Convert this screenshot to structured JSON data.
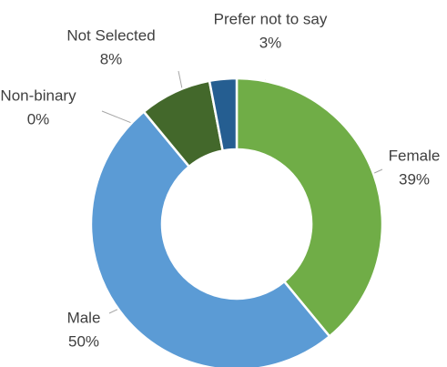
{
  "chart_data": {
    "type": "donut",
    "categories": [
      "Female",
      "Male",
      "Non-binary",
      "Not Selected",
      "Prefer not to say"
    ],
    "values": [
      39,
      50,
      0,
      8,
      3
    ],
    "value_labels": [
      "39%",
      "50%",
      "0%",
      "8%",
      "3%"
    ],
    "colors": [
      "#70ad47",
      "#5b9bd5",
      "#a5a5a5",
      "#43682b",
      "#255e91"
    ]
  }
}
